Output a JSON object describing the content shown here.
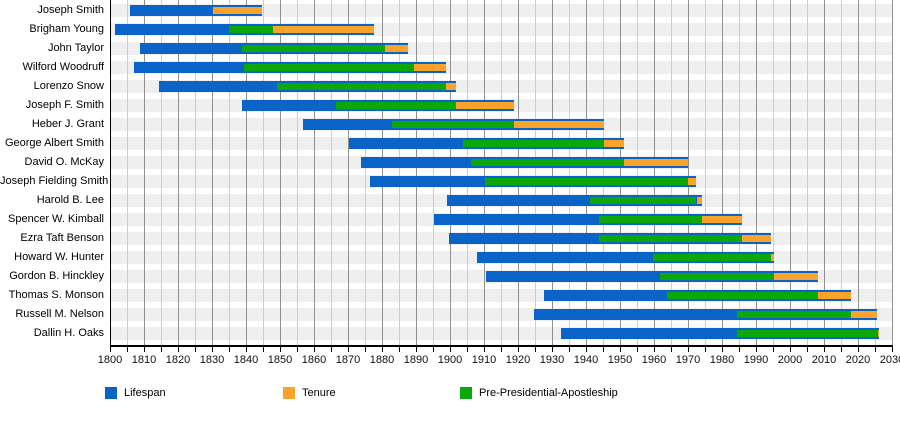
{
  "chart_data": {
    "type": "bar",
    "subtype": "gantt-timeline",
    "title": "",
    "xlabel": "",
    "ylabel": "",
    "axis": {
      "min": 1800,
      "max": 2030,
      "major_interval": 10,
      "minor_interval": 5,
      "tick_labels": [
        "1800",
        "1810",
        "1820",
        "1830",
        "1840",
        "1850",
        "1860",
        "1870",
        "1880",
        "1890",
        "1900",
        "1910",
        "1920",
        "1930",
        "1940",
        "1950",
        "1960",
        "1970",
        "1980",
        "1990",
        "2000",
        "2010",
        "2020",
        "2030"
      ]
    },
    "legend": [
      {
        "key": "lifespan",
        "label": "Lifespan",
        "color": "#0a64c8"
      },
      {
        "key": "tenure",
        "label": "Tenure",
        "color": "#fba22a"
      },
      {
        "key": "apostleship",
        "label": "Pre-Presidential-Apostleship",
        "color": "#0aa80a"
      }
    ],
    "legend_position": "bottom",
    "grid": true,
    "rows": [
      {
        "name": "Joseph Smith",
        "lifespan": [
          1805.9,
          1844.6
        ],
        "apostleship": null,
        "tenure": [
          1830.3,
          1844.6
        ]
      },
      {
        "name": "Brigham Young",
        "lifespan": [
          1801.4,
          1877.7
        ],
        "apostleship": [
          1835.1,
          1847.9
        ],
        "tenure": [
          1847.9,
          1877.7
        ]
      },
      {
        "name": "John Taylor",
        "lifespan": [
          1808.8,
          1887.6
        ],
        "apostleship": [
          1838.9,
          1880.8
        ],
        "tenure": [
          1880.8,
          1887.6
        ]
      },
      {
        "name": "Wilford Woodruff",
        "lifespan": [
          1807.2,
          1898.7
        ],
        "apostleship": [
          1839.3,
          1889.3
        ],
        "tenure": [
          1889.3,
          1898.7
        ]
      },
      {
        "name": "Lorenzo Snow",
        "lifespan": [
          1814.3,
          1901.8
        ],
        "apostleship": [
          1849.1,
          1898.7
        ],
        "tenure": [
          1898.7,
          1901.8
        ]
      },
      {
        "name": "Joseph F. Smith",
        "lifespan": [
          1838.9,
          1918.9
        ],
        "apostleship": [
          1866.5,
          1901.8
        ],
        "tenure": [
          1901.8,
          1918.9
        ]
      },
      {
        "name": "Heber J. Grant",
        "lifespan": [
          1856.9,
          1945.4
        ],
        "apostleship": [
          1882.8,
          1918.9
        ],
        "tenure": [
          1918.9,
          1945.4
        ]
      },
      {
        "name": "George Albert Smith",
        "lifespan": [
          1870.3,
          1951.3
        ],
        "apostleship": [
          1903.8,
          1945.4
        ],
        "tenure": [
          1945.4,
          1951.3
        ]
      },
      {
        "name": "David O. McKay",
        "lifespan": [
          1873.7,
          1970.1
        ],
        "apostleship": [
          1906.3,
          1951.3
        ],
        "tenure": [
          1951.3,
          1970.1
        ]
      },
      {
        "name": "Joseph Fielding Smith",
        "lifespan": [
          1876.5,
          1972.5
        ],
        "apostleship": [
          1910.3,
          1970.1
        ],
        "tenure": [
          1970.1,
          1972.5
        ]
      },
      {
        "name": "Harold B. Lee",
        "lifespan": [
          1899.2,
          1974.0
        ],
        "apostleship": [
          1941.3,
          1972.5
        ],
        "tenure": [
          1972.5,
          1974.0
        ]
      },
      {
        "name": "Spencer W. Kimball",
        "lifespan": [
          1895.2,
          1985.8
        ],
        "apostleship": [
          1943.8,
          1974.0
        ],
        "tenure": [
          1974.0,
          1985.8
        ]
      },
      {
        "name": "Ezra Taft Benson",
        "lifespan": [
          1899.6,
          1994.4
        ],
        "apostleship": [
          1943.8,
          1985.8
        ],
        "tenure": [
          1985.8,
          1994.4
        ]
      },
      {
        "name": "Howard W. Hunter",
        "lifespan": [
          1907.9,
          1995.2
        ],
        "apostleship": [
          1959.8,
          1994.4
        ],
        "tenure": [
          1994.4,
          1995.2
        ]
      },
      {
        "name": "Gordon B. Hinckley",
        "lifespan": [
          1910.5,
          2008.1
        ],
        "apostleship": [
          1961.8,
          1995.2
        ],
        "tenure": [
          1995.2,
          2008.1
        ]
      },
      {
        "name": "Thomas S. Monson",
        "lifespan": [
          1927.6,
          2018.0
        ],
        "apostleship": [
          1963.8,
          2008.1
        ],
        "tenure": [
          2008.1,
          2018.0
        ]
      },
      {
        "name": "Russell M. Nelson",
        "lifespan": [
          1924.7,
          2025.6
        ],
        "apostleship": [
          1984.3,
          2018.0
        ],
        "tenure": [
          2018.0,
          2025.6
        ]
      },
      {
        "name": "Dallin H. Oaks",
        "lifespan": [
          1932.6,
          2026.2
        ],
        "apostleship": [
          1984.4,
          2025.8
        ],
        "tenure": [
          2025.8,
          2026.2
        ]
      }
    ],
    "colors": {
      "row_band": "#efefef",
      "grid_major": "#909090",
      "grid_minor": "#cdcdcd",
      "axis": "#000000"
    }
  }
}
